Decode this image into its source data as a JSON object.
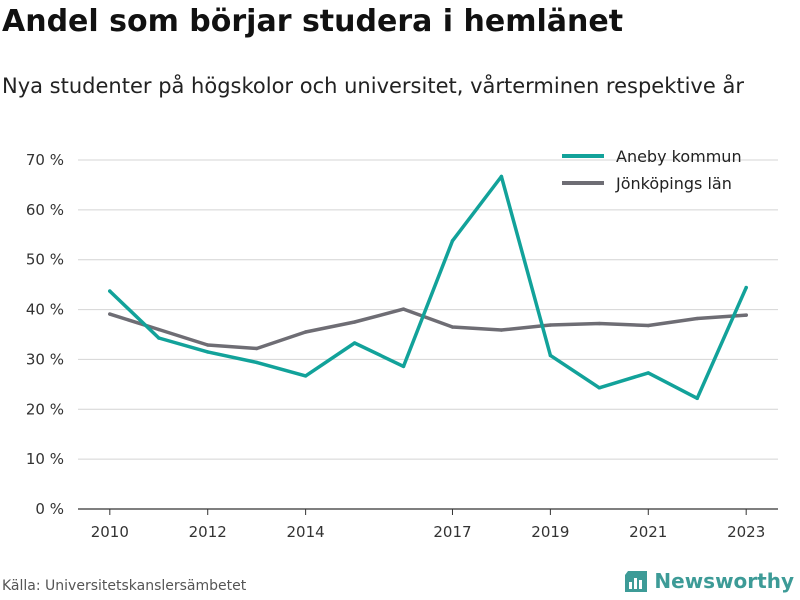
{
  "header": {
    "title": "Andel som börjar studera i hemlänet",
    "subtitle": "Nya studenter på högskolor och universitet, vårterminen respektive år"
  },
  "footer": {
    "source": "Källa: Universitetskanslersämbetet",
    "brand": "Newsworthy"
  },
  "colors": {
    "aneby": "#12a29a",
    "lan": "#6e6d74",
    "grid": "#d4d4d4",
    "brand": "#3d9b97"
  },
  "chart_data": {
    "type": "line",
    "title": "Andel som börjar studera i hemlänet",
    "subtitle": "Nya studenter på högskolor och universitet, vårterminen respektive år",
    "x": [
      2010,
      2011,
      2012,
      2013,
      2014,
      2015,
      2016,
      2017,
      2018,
      2019,
      2020,
      2021,
      2022,
      2023
    ],
    "xticks": [
      "2010",
      "2012",
      "2014",
      "2017",
      "2019",
      "2021",
      "2023"
    ],
    "xtick_values": [
      2010,
      2012,
      2014,
      2017,
      2019,
      2021,
      2023
    ],
    "ylim": [
      0,
      70
    ],
    "yticks": [
      "0 %",
      "10 %",
      "20 %",
      "30 %",
      "40 %",
      "50 %",
      "60 %",
      "70 %"
    ],
    "ytick_values": [
      0,
      10,
      20,
      30,
      40,
      50,
      60,
      70
    ],
    "grid": true,
    "legend_position": "top-right",
    "series": [
      {
        "name": "Aneby kommun",
        "color": "#12a29a",
        "values": [
          43.7,
          34.3,
          31.5,
          29.4,
          26.7,
          33.3,
          28.6,
          53.8,
          66.7,
          30.8,
          24.3,
          27.3,
          22.2,
          44.4
        ]
      },
      {
        "name": "Jönköpings län",
        "color": "#6e6d74",
        "values": [
          39.1,
          36.0,
          32.9,
          32.2,
          35.5,
          37.5,
          40.1,
          36.5,
          35.9,
          36.9,
          37.2,
          36.8,
          38.2,
          38.9
        ]
      }
    ]
  }
}
